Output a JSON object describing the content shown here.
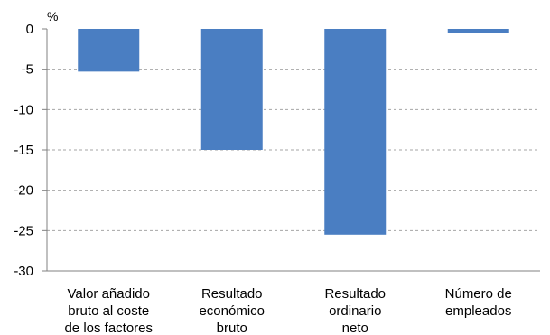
{
  "chart_data": {
    "type": "bar",
    "title": "",
    "xlabel": "",
    "ylabel": "",
    "unit_label": "%",
    "ylim": [
      -30,
      0
    ],
    "yticks": [
      0,
      -5,
      -10,
      -15,
      -20,
      -25,
      -30
    ],
    "grid": "horizontal dashed",
    "categories": [
      [
        "Valor añadido",
        "bruto al coste",
        "de los factores"
      ],
      [
        "Resultado",
        "económico",
        "bruto"
      ],
      [
        "Resultado",
        "ordinario",
        "neto"
      ],
      [
        "Número de",
        "empleados"
      ]
    ],
    "values": [
      -5.3,
      -15.0,
      -25.5,
      -0.5
    ],
    "bar_color": "#4a7ec2"
  }
}
